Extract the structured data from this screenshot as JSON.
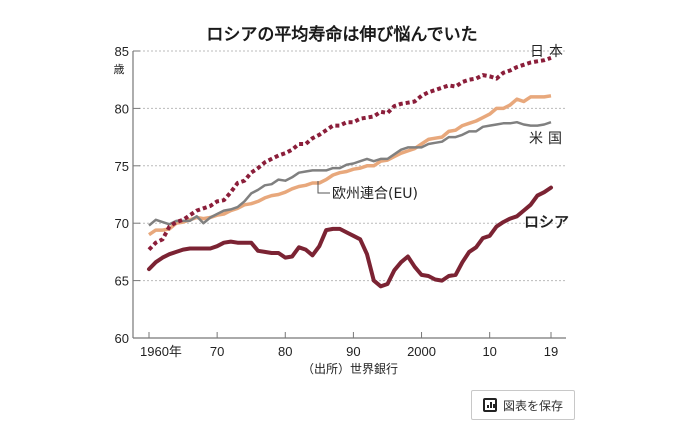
{
  "chart_data": {
    "type": "line",
    "title": "ロシアの平均寿命は伸び悩んでいた",
    "ylabel": "歳",
    "xlabel": "",
    "ylim": [
      60,
      85
    ],
    "xlim": [
      1960,
      2019
    ],
    "yticks": [
      60,
      65,
      70,
      75,
      80,
      85
    ],
    "ytick_labels": [
      "60",
      "65",
      "70",
      "75",
      "80",
      "85"
    ],
    "xticks": [
      1960,
      1970,
      1980,
      1990,
      2000,
      2010,
      2019
    ],
    "xtick_labels": [
      "1960年",
      "70",
      "80",
      "90",
      "2000",
      "10",
      "19"
    ],
    "grid": "horizontal dashed",
    "source": "（出所）世界銀行",
    "x": [
      1960,
      1961,
      1962,
      1963,
      1964,
      1965,
      1966,
      1967,
      1968,
      1969,
      1970,
      1971,
      1972,
      1973,
      1974,
      1975,
      1976,
      1977,
      1978,
      1979,
      1980,
      1981,
      1982,
      1983,
      1984,
      1985,
      1986,
      1987,
      1988,
      1989,
      1990,
      1991,
      1992,
      1993,
      1994,
      1995,
      1996,
      1997,
      1998,
      1999,
      2000,
      2001,
      2002,
      2003,
      2004,
      2005,
      2006,
      2007,
      2008,
      2009,
      2010,
      2011,
      2012,
      2013,
      2014,
      2015,
      2016,
      2017,
      2018,
      2019
    ],
    "series": [
      {
        "name": "日本",
        "color": "#8b1e3a",
        "style": "dotted",
        "values": [
          67.7,
          68.3,
          68.6,
          69.7,
          70.1,
          70.3,
          70.7,
          71.1,
          71.3,
          71.5,
          71.9,
          72.0,
          72.7,
          73.5,
          73.7,
          74.4,
          74.8,
          75.3,
          75.6,
          75.9,
          76.1,
          76.4,
          76.9,
          76.9,
          77.4,
          77.7,
          78.1,
          78.5,
          78.5,
          78.8,
          78.8,
          79.1,
          79.2,
          79.3,
          79.7,
          79.6,
          80.2,
          80.4,
          80.5,
          80.6,
          81.1,
          81.4,
          81.6,
          81.8,
          82.0,
          81.9,
          82.3,
          82.5,
          82.6,
          82.9,
          82.8,
          82.6,
          83.1,
          83.3,
          83.6,
          83.8,
          84.0,
          84.1,
          84.2,
          84.4
        ]
      },
      {
        "name": "欧州連合(EU)",
        "color": "#e8a87c",
        "style": "solid",
        "values": [
          69.0,
          69.4,
          69.4,
          69.5,
          70.0,
          70.1,
          70.3,
          70.5,
          70.4,
          70.5,
          70.7,
          70.8,
          71.1,
          71.3,
          71.6,
          71.7,
          71.9,
          72.2,
          72.4,
          72.5,
          72.7,
          73.0,
          73.2,
          73.3,
          73.5,
          73.5,
          73.8,
          74.2,
          74.4,
          74.5,
          74.7,
          74.8,
          75.0,
          75.0,
          75.4,
          75.5,
          75.8,
          76.1,
          76.3,
          76.5,
          76.9,
          77.3,
          77.4,
          77.5,
          78.0,
          78.1,
          78.5,
          78.7,
          78.9,
          79.2,
          79.5,
          80.0,
          80.0,
          80.3,
          80.8,
          80.6,
          81.0,
          81.0,
          81.0,
          81.1
        ]
      },
      {
        "name": "米国",
        "color": "#808080",
        "style": "solid",
        "values": [
          69.8,
          70.3,
          70.1,
          69.9,
          70.2,
          70.2,
          70.2,
          70.6,
          70.0,
          70.5,
          70.8,
          71.1,
          71.2,
          71.4,
          71.9,
          72.6,
          72.9,
          73.3,
          73.4,
          73.8,
          73.7,
          74.0,
          74.4,
          74.5,
          74.6,
          74.6,
          74.6,
          74.8,
          74.8,
          75.1,
          75.2,
          75.4,
          75.6,
          75.4,
          75.6,
          75.6,
          76.0,
          76.4,
          76.6,
          76.6,
          76.6,
          76.9,
          77.0,
          77.1,
          77.5,
          77.5,
          77.7,
          78.0,
          78.0,
          78.4,
          78.5,
          78.6,
          78.7,
          78.7,
          78.8,
          78.6,
          78.5,
          78.5,
          78.6,
          78.8
        ]
      },
      {
        "name": "ロシア",
        "color": "#7b2333",
        "style": "solid",
        "values": [
          66.0,
          66.6,
          67.0,
          67.3,
          67.5,
          67.7,
          67.8,
          67.8,
          67.8,
          67.8,
          68.0,
          68.3,
          68.4,
          68.3,
          68.3,
          68.3,
          67.6,
          67.5,
          67.4,
          67.4,
          67.0,
          67.1,
          67.9,
          67.7,
          67.2,
          68.0,
          69.4,
          69.5,
          69.5,
          69.2,
          68.9,
          68.6,
          67.3,
          65.0,
          64.5,
          64.7,
          65.9,
          66.6,
          67.1,
          66.2,
          65.5,
          65.4,
          65.1,
          65.0,
          65.4,
          65.5,
          66.6,
          67.5,
          67.9,
          68.7,
          68.9,
          69.7,
          70.1,
          70.4,
          70.6,
          71.1,
          71.6,
          72.4,
          72.7,
          73.1
        ]
      }
    ],
    "annotations": [
      "日本",
      "米国",
      "欧州連合(EU)",
      "ロシア"
    ]
  },
  "ui": {
    "save_button_label": "図表を保存",
    "save_icon": "bar-chart-icon"
  }
}
